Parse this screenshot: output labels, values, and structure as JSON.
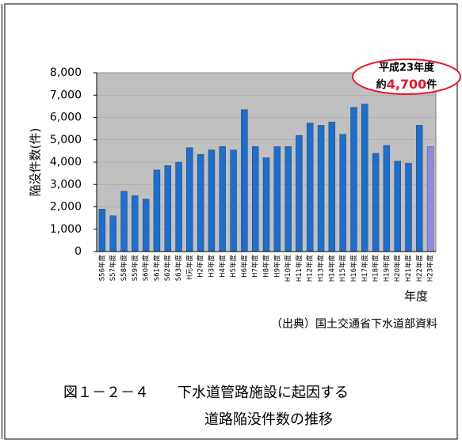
{
  "chart_data": {
    "type": "bar",
    "ylabel": "陥没件数(件)",
    "xlabel": "年度",
    "categories": [
      "S56年度",
      "S57年度",
      "S58年度",
      "S59年度",
      "S60年度",
      "S61年度",
      "S62年度",
      "S63年度",
      "H元年度",
      "H2年度",
      "H3年度",
      "H4年度",
      "H5年度",
      "H6年度",
      "H7年度",
      "H8年度",
      "H9年度",
      "H10年度",
      "H11年度",
      "H12年度",
      "H13年度",
      "H14年度",
      "H15年度",
      "H16年度",
      "H17年度",
      "H18年度",
      "H19年度",
      "H20年度",
      "H21年度",
      "H22年度",
      "H23年度"
    ],
    "values": [
      1900,
      1600,
      2700,
      2500,
      2350,
      3650,
      3850,
      4000,
      4650,
      4350,
      4550,
      4700,
      4550,
      6350,
      4700,
      4200,
      4700,
      4700,
      5200,
      5750,
      5650,
      5800,
      5250,
      6450,
      6600,
      4400,
      4750,
      4050,
      3950,
      5650,
      4700
    ],
    "colors": [
      "#1a6fd0",
      "#1a6fd0",
      "#1a6fd0",
      "#1a6fd0",
      "#1a6fd0",
      "#1a6fd0",
      "#1a6fd0",
      "#1a6fd0",
      "#1a6fd0",
      "#1a6fd0",
      "#1a6fd0",
      "#1a6fd0",
      "#1a6fd0",
      "#1a6fd0",
      "#1a6fd0",
      "#1a6fd0",
      "#1a6fd0",
      "#1a6fd0",
      "#1a6fd0",
      "#1a6fd0",
      "#1a6fd0",
      "#1a6fd0",
      "#1a6fd0",
      "#1a6fd0",
      "#1a6fd0",
      "#1a6fd0",
      "#1a6fd0",
      "#1a6fd0",
      "#1a6fd0",
      "#1a6fd0",
      "#8c8ce6"
    ],
    "ylim": [
      0,
      8000
    ],
    "yticks": [
      0,
      {
        "value": 1000,
        "label": "1,000"
      },
      {
        "value": 2000,
        "label": "2,000"
      },
      {
        "value": 3000,
        "label": "3,000"
      },
      {
        "value": 4000,
        "label": "4,000"
      },
      {
        "value": 5000,
        "label": "5,000"
      },
      {
        "value": 6000,
        "label": "6,000"
      },
      {
        "value": 7000,
        "label": "7,000"
      },
      {
        "value": 8000,
        "label": "8,000"
      }
    ],
    "grid": true,
    "annotation": {
      "line1": "平成23年度",
      "prefix": "約",
      "value": "4,700",
      "suffix": "件"
    },
    "source": "（出典）国土交通省下水道部資料",
    "caption": [
      "図１－２－４　　下水道管路施設に起因する",
      "道路陥没件数の推移"
    ]
  }
}
